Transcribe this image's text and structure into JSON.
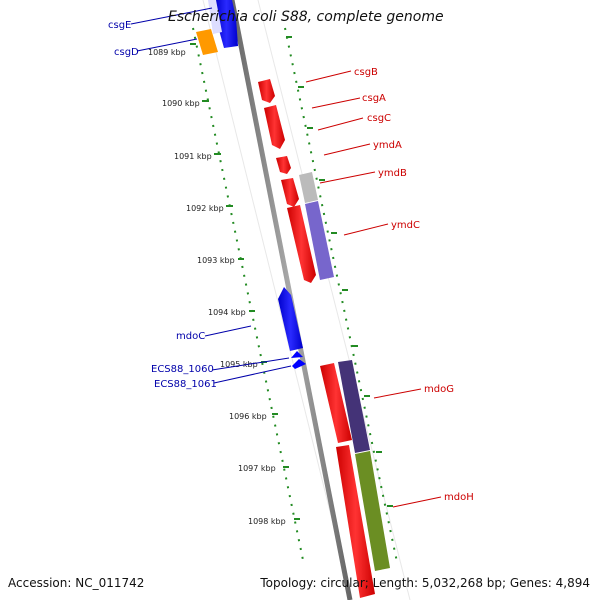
{
  "header": {
    "title": "Escherichia coli S88, complete genome"
  },
  "footer": {
    "accession": "Accession: NC_011742",
    "topology": "Topology: circular; Length: 5,032,268 bp; Genes: 4,894"
  },
  "colors": {
    "forward_gene": "#ff0000",
    "reverse_gene": "#0000ff",
    "forward_label": "#cc0000",
    "reverse_label": "#0000aa",
    "backbone": "#888888",
    "tick": "#228b22",
    "orange_gene": "#ff9900"
  },
  "ticks": [
    {
      "label": "1089 kbp"
    },
    {
      "label": "1090 kbp"
    },
    {
      "label": "1091 kbp"
    },
    {
      "label": "1092 kbp"
    },
    {
      "label": "1093 kbp"
    },
    {
      "label": "1094 kbp"
    },
    {
      "label": "1095 kbp"
    },
    {
      "label": "1096 kbp"
    },
    {
      "label": "1097 kbp"
    },
    {
      "label": "1098 kbp"
    }
  ],
  "genes_forward": [
    {
      "name": "csgB"
    },
    {
      "name": "csgA"
    },
    {
      "name": "csgC"
    },
    {
      "name": "ymdA"
    },
    {
      "name": "ymdB"
    },
    {
      "name": "ymdC"
    },
    {
      "name": "mdoG"
    },
    {
      "name": "mdoH"
    }
  ],
  "genes_reverse": [
    {
      "name": "csgE"
    },
    {
      "name": "csgD"
    },
    {
      "name": "mdoC"
    },
    {
      "name": "ECS88_1060"
    },
    {
      "name": "ECS88_1061"
    }
  ]
}
